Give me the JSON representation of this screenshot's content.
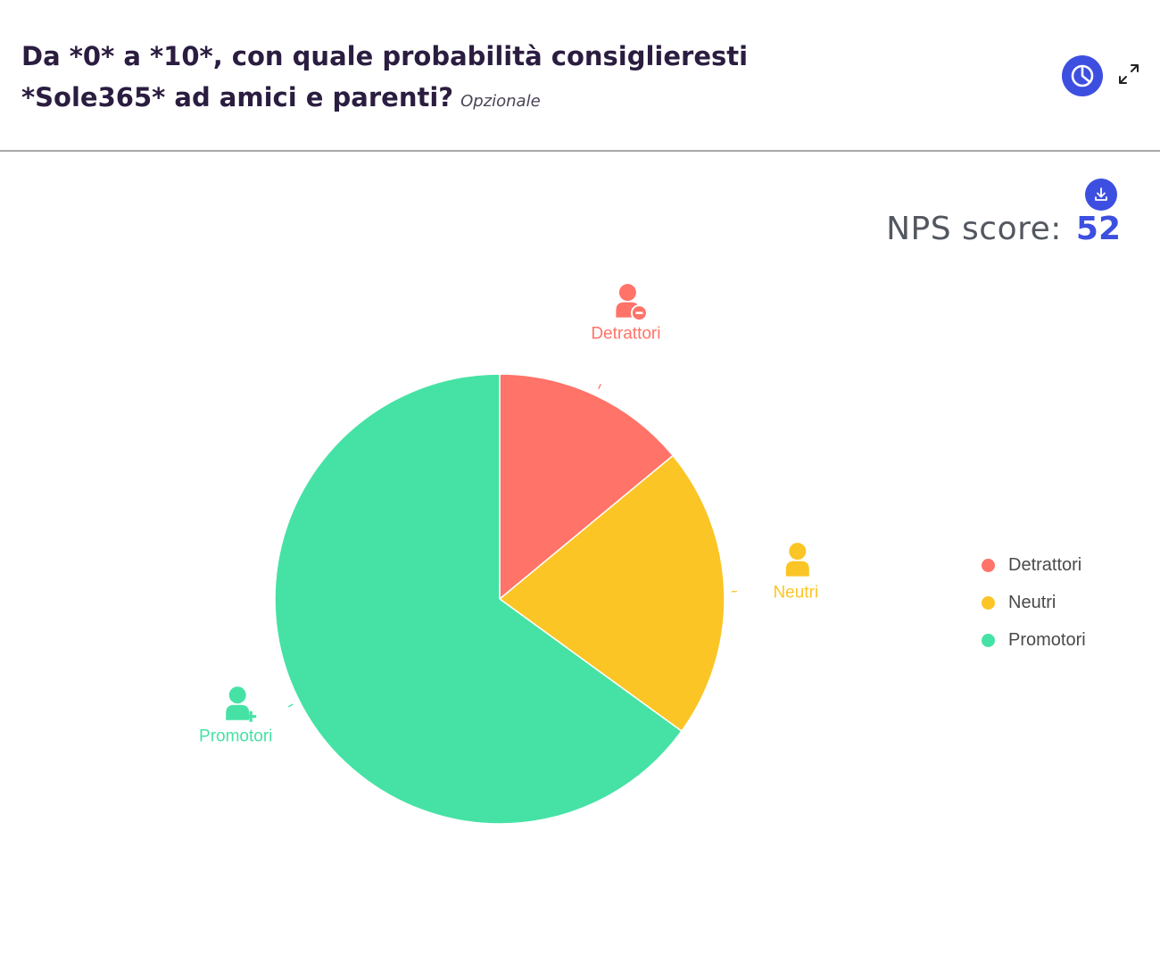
{
  "header": {
    "question": "Da *0* a *10*, con quale probabilità consiglieresti *Sole365* ad amici e parenti?",
    "optional_label": "Opzionale",
    "chart_type_icon": "pie-chart-icon",
    "expand_icon": "expand-icon"
  },
  "nps": {
    "label": "NPS score:",
    "value": "52"
  },
  "download_icon": "download-icon",
  "chart_data": {
    "type": "pie",
    "slices": [
      {
        "name": "Detrattori",
        "value": 14,
        "color": "#ff7368",
        "icon": "user-minus-icon"
      },
      {
        "name": "Neutri",
        "value": 21,
        "color": "#fbc526",
        "icon": "user-icon"
      },
      {
        "name": "Promotori",
        "value": 65,
        "color": "#46e2a5",
        "icon": "user-plus-icon"
      }
    ],
    "legend_position": "right"
  }
}
